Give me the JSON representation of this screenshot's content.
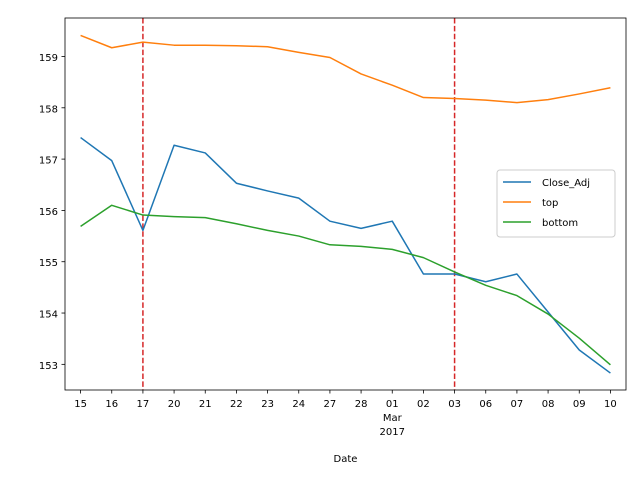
{
  "chart_data": {
    "type": "line",
    "xlabel": "Date",
    "ylabel": "",
    "ylim": [
      152.5,
      159.75
    ],
    "yticks": [
      153,
      154,
      155,
      156,
      157,
      158,
      159
    ],
    "categories": [
      "15",
      "16",
      "17",
      "20",
      "21",
      "22",
      "23",
      "24",
      "27",
      "28",
      "01",
      "02",
      "03",
      "06",
      "07",
      "08",
      "09",
      "10"
    ],
    "category_sublabel": {
      "index": 10,
      "lines": [
        "Mar",
        "2017"
      ]
    },
    "series": [
      {
        "name": "Close_Adj",
        "color": "#1f77b4",
        "values": [
          157.42,
          156.97,
          155.61,
          157.27,
          157.12,
          156.53,
          156.38,
          156.24,
          155.79,
          155.65,
          155.79,
          154.76,
          154.76,
          154.61,
          154.76,
          154.02,
          153.28,
          152.83
        ]
      },
      {
        "name": "top",
        "color": "#ff7f0e",
        "values": [
          159.41,
          159.17,
          159.28,
          159.22,
          159.22,
          159.21,
          159.19,
          159.08,
          158.98,
          158.66,
          158.44,
          158.2,
          158.18,
          158.15,
          158.1,
          158.16,
          158.27,
          158.39
        ]
      },
      {
        "name": "bottom",
        "color": "#2ca02c",
        "values": [
          155.69,
          156.1,
          155.91,
          155.88,
          155.86,
          155.74,
          155.61,
          155.5,
          155.33,
          155.3,
          155.24,
          155.08,
          154.8,
          154.54,
          154.34,
          153.98,
          153.51,
          152.99
        ]
      }
    ],
    "vlines": [
      {
        "at_category_index": 2,
        "color": "#d62728",
        "style": "dashed"
      },
      {
        "at_category_index": 12,
        "color": "#d62728",
        "style": "dashed"
      }
    ],
    "legend": {
      "position": "right"
    },
    "grid": false
  }
}
